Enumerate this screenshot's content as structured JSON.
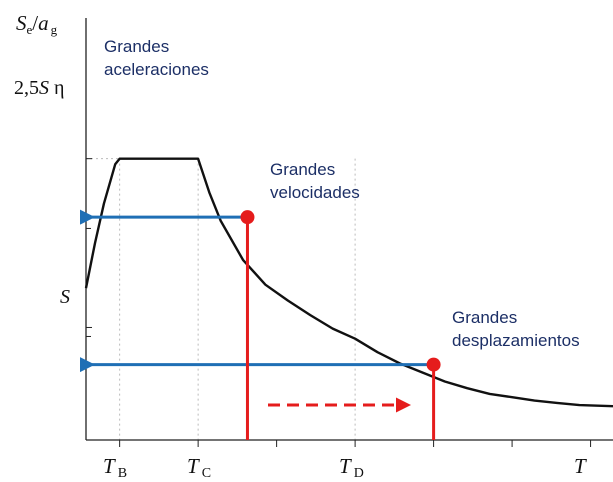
{
  "chart_data": {
    "type": "line",
    "title": "",
    "y_axis_label": {
      "main": "S",
      "sub": "e",
      "slash": "/",
      "main2": "a",
      "sub2": "g"
    },
    "x_axis_label": "T",
    "y_ticks": [
      {
        "main": "2,5",
        "italic": "S",
        "rest": " η",
        "level": 2.5
      },
      {
        "main": "",
        "italic": "S",
        "rest": "",
        "level": 1.0
      }
    ],
    "x_ticks": [
      {
        "main": "T",
        "sub": "B",
        "value": 0.15
      },
      {
        "main": "T",
        "sub": "C",
        "value": 0.5
      },
      {
        "main": "T",
        "sub": "D",
        "value": 1.2
      }
    ],
    "x_range": [
      0.0,
      2.35
    ],
    "y_range": [
      0.0,
      3.75
    ],
    "series": [
      {
        "points": [
          [
            0.0,
            1.35
          ],
          [
            0.04,
            1.75
          ],
          [
            0.08,
            2.1
          ],
          [
            0.13,
            2.45
          ],
          [
            0.15,
            2.5
          ],
          [
            0.5,
            2.5
          ],
          [
            0.55,
            2.2
          ],
          [
            0.6,
            1.95
          ],
          [
            0.7,
            1.6
          ],
          [
            0.8,
            1.38
          ],
          [
            0.9,
            1.24
          ],
          [
            1.0,
            1.11
          ],
          [
            1.1,
            0.99
          ],
          [
            1.2,
            0.9
          ],
          [
            1.3,
            0.78
          ],
          [
            1.4,
            0.68
          ],
          [
            1.5,
            0.6
          ],
          [
            1.6,
            0.52
          ],
          [
            1.7,
            0.46
          ],
          [
            1.8,
            0.41
          ],
          [
            1.9,
            0.38
          ],
          [
            2.0,
            0.35
          ],
          [
            2.1,
            0.33
          ],
          [
            2.2,
            0.31
          ],
          [
            2.35,
            0.3
          ]
        ],
        "color": "#111111"
      }
    ],
    "annotations": [
      {
        "id": "aceleraciones",
        "lines": [
          "Grandes",
          "aceleraciones"
        ]
      },
      {
        "id": "velocidades",
        "lines": [
          "Grandes",
          "velocidades"
        ]
      },
      {
        "id": "desplazamientos",
        "lines": [
          "Grandes",
          "desplazamientos"
        ]
      }
    ],
    "markers": [
      {
        "id": "marker-velocidades",
        "x": 0.72,
        "y": 1.98
      },
      {
        "id": "marker-desplazamientos",
        "x": 1.55,
        "y": 0.67
      }
    ],
    "colors": {
      "curve": "#111111",
      "blue_arrow": "#1f6fb5",
      "red": "#e51c1c",
      "annotation_text": "#1c2f66",
      "grid": "#bbbbbb"
    }
  }
}
